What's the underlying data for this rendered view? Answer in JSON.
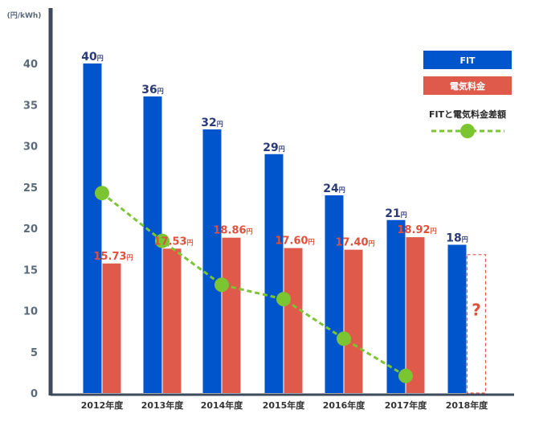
{
  "chart_data": {
    "type": "bar",
    "unit_label": "(円/kWh)",
    "categories": [
      "2012年度",
      "2013年度",
      "2014年度",
      "2015年度",
      "2016年度",
      "2017年度",
      "2018年度"
    ],
    "yticks": [
      "0",
      "5",
      "10",
      "15",
      "20",
      "25",
      "30",
      "35",
      "40"
    ],
    "ylim": [
      0,
      45
    ],
    "series": [
      {
        "name": "FIT",
        "color": "#0055cc",
        "values": [
          40,
          36,
          32,
          29,
          24,
          21,
          18
        ],
        "value_labels": [
          "40",
          "36",
          "32",
          "29",
          "24",
          "21",
          "18"
        ],
        "label_suffix": "円"
      },
      {
        "name": "電気料金",
        "color": "#e05a4c",
        "values": [
          15.73,
          17.53,
          18.86,
          17.6,
          17.4,
          18.92,
          null
        ],
        "value_labels": [
          "15.73",
          "17.53",
          "18.86",
          "17.60",
          "17.40",
          "18.92",
          ""
        ],
        "label_suffix": "円"
      },
      {
        "name": "FITと電気料金差額",
        "color": "#7cc532",
        "type": "line",
        "values": [
          24.27,
          18.47,
          13.14,
          11.4,
          6.6,
          2.08,
          null
        ]
      }
    ],
    "unknown_marker": "?",
    "legend_position": "top-right",
    "grid": false
  }
}
